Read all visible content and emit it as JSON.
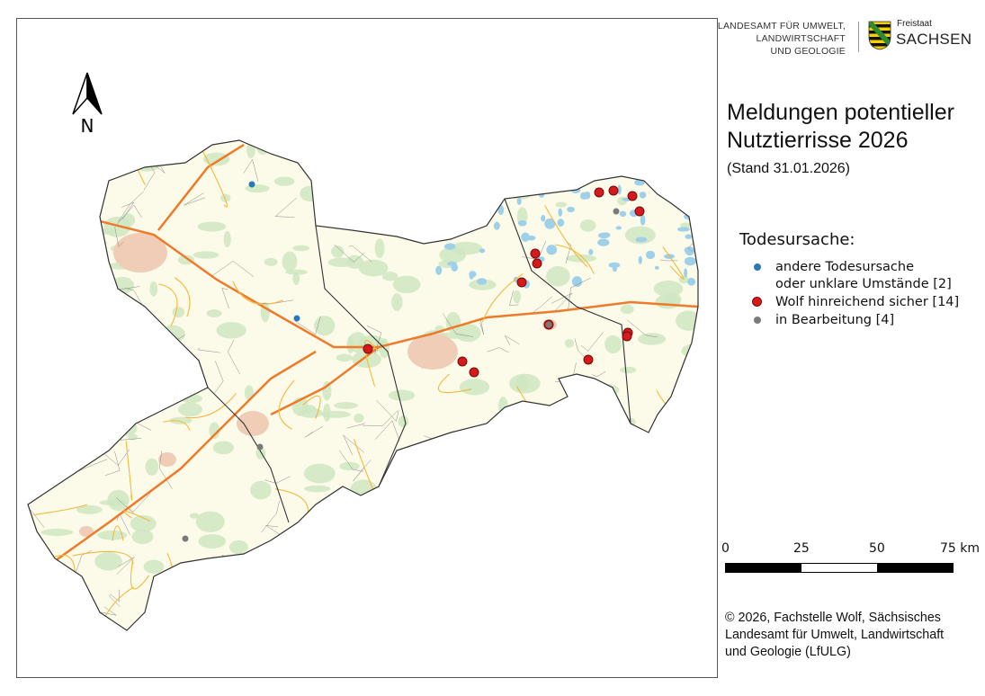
{
  "header": {
    "agency_lines": [
      "LANDESAMT FÜR UMWELT,",
      "LANDWIRTSCHAFT",
      "UND GEOLOGIE"
    ],
    "state_small": "Freistaat",
    "state_large": "SACHSEN"
  },
  "title_lines": [
    "Meldungen potentieller",
    "Nutztierrisse 2026"
  ],
  "subtitle": "(Stand 31.01.2026)",
  "north_arrow": {
    "label": "N"
  },
  "legend": {
    "title": "Todesursache:",
    "items": [
      {
        "label_lines": [
          "andere Todesursache",
          "oder unklare Umstände [2]"
        ],
        "color": "#2a7ab8",
        "count": 2
      },
      {
        "label_lines": [
          "Wolf hinreichend sicher [14]"
        ],
        "color": "#d7191c",
        "count": 14
      },
      {
        "label_lines": [
          "in Bearbeitung [4]"
        ],
        "color": "#7a7a7a",
        "count": 4
      }
    ]
  },
  "scale": {
    "ticks": [
      "0",
      "25",
      "50",
      "75 km"
    ]
  },
  "copyright_lines": [
    "© 2026, Fachstelle Wolf, Sächsisches",
    "Landesamt für Umwelt, Landwirtschaft",
    "und Geologie (LfULG)"
  ],
  "map_colors": {
    "land": "#fcfbe9",
    "forest": "#cfe6c2",
    "water": "#9fd0ea",
    "urban": "#efcdb7",
    "motorway": "#ee7a2a",
    "road": "#f3b83b",
    "border": "#333333"
  }
}
